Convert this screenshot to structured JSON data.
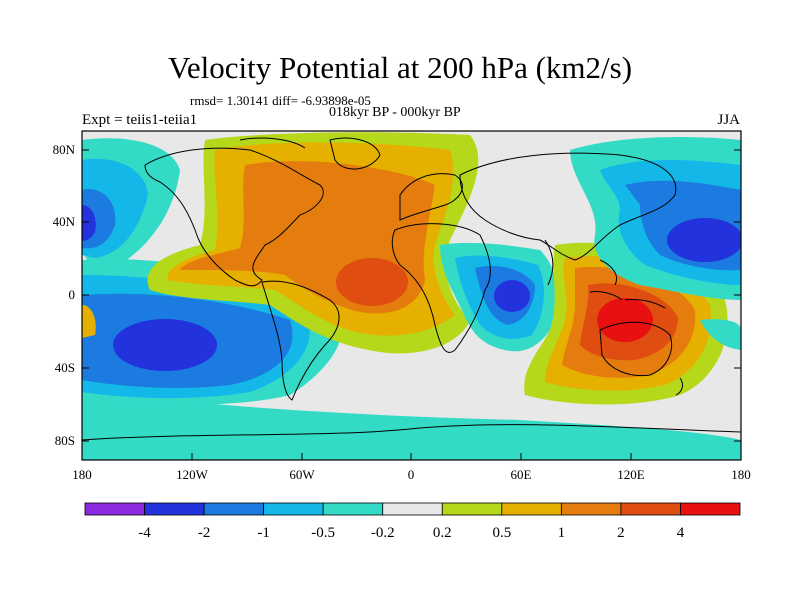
{
  "title": "Velocity Potential at 200 hPa (km2/s)",
  "stats": "rmsd= 1.30141 diff= -6.93898e-05",
  "period": "018kyr BP - 000kyr BP",
  "experiment": "Expt = teiis1-teiia1",
  "season": "JJA",
  "map": {
    "projection": "cylindrical equidistant",
    "lat_ticks": [
      "80N",
      "40N",
      "0",
      "40S",
      "80S"
    ],
    "lon_ticks": [
      "180",
      "120W",
      "60W",
      "0",
      "60E",
      "120E",
      "180"
    ]
  },
  "colorbar": {
    "labels": [
      "-4",
      "-2",
      "-1",
      "-0.5",
      "-0.2",
      "0.2",
      "0.5",
      "1",
      "2",
      "4"
    ],
    "colors": [
      "#8a2be2",
      "#2233dd",
      "#1b7be0",
      "#14b8e8",
      "#33dbc7",
      "#e8e8e8",
      "#b5d81a",
      "#e6b000",
      "#e57d0e",
      "#e04d10",
      "#e81010"
    ]
  }
}
